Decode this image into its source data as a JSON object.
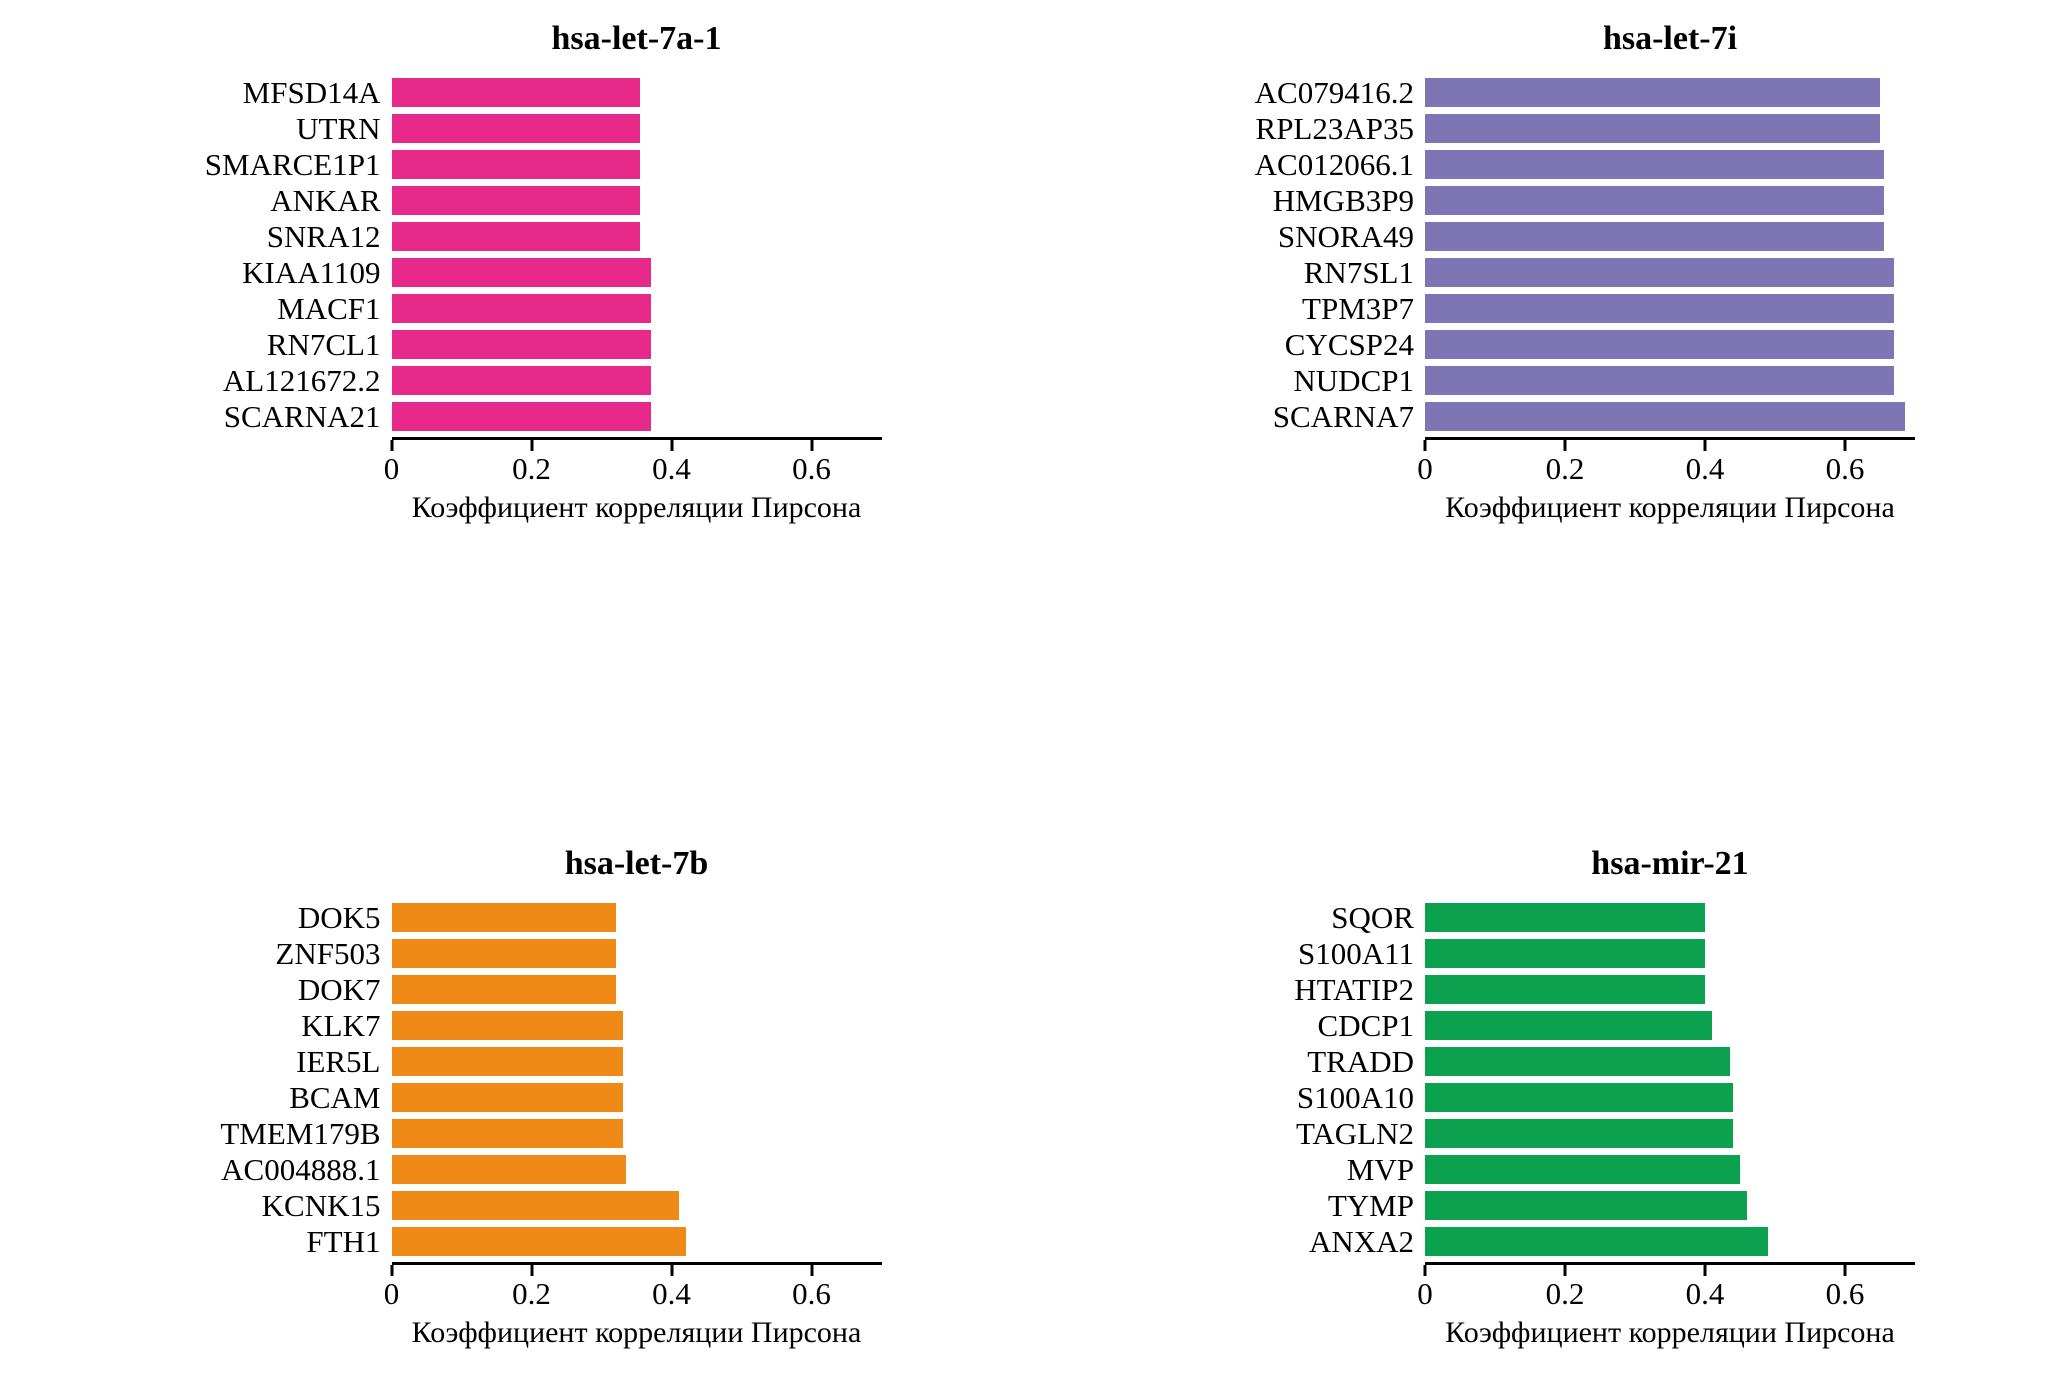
{
  "figure": {
    "background": "#ffffff",
    "layout": "2x2-grid"
  },
  "chart_data": [
    {
      "type": "bar",
      "orientation": "horizontal",
      "title": "hsa-let-7a-1",
      "color": "#E7298A",
      "xlabel": "Коэффициент корреляции Пирсона",
      "xlim": [
        0,
        0.7
      ],
      "xticks": [
        0,
        0.2,
        0.4,
        0.6
      ],
      "xtick_labels": [
        "0",
        "0.2",
        "0.4",
        "0.6"
      ],
      "grid": false,
      "legend": "none",
      "categories": [
        "MFSD14A",
        "UTRN",
        "SMARCE1P1",
        "ANKAR",
        "SNRA12",
        "KIAA1109",
        "MACF1",
        "RN7CL1",
        "AL121672.2",
        "SCARNA21"
      ],
      "values": [
        0.355,
        0.355,
        0.355,
        0.355,
        0.355,
        0.37,
        0.37,
        0.37,
        0.37,
        0.37
      ]
    },
    {
      "type": "bar",
      "orientation": "horizontal",
      "title": "hsa-let-7i",
      "color": "#7E76B4",
      "xlabel": "Коэффициент корреляции Пирсона",
      "xlim": [
        0,
        0.7
      ],
      "xticks": [
        0,
        0.2,
        0.4,
        0.6
      ],
      "xtick_labels": [
        "0",
        "0.2",
        "0.4",
        "0.6"
      ],
      "grid": false,
      "legend": "none",
      "categories": [
        "AC079416.2",
        "RPL23AP35",
        "AC012066.1",
        "HMGB3P9",
        "SNORA49",
        "RN7SL1",
        "TPM3P7",
        "CYCSP24",
        "NUDCP1",
        "SCARNA7"
      ],
      "values": [
        0.65,
        0.65,
        0.655,
        0.655,
        0.655,
        0.67,
        0.67,
        0.67,
        0.67,
        0.685
      ]
    },
    {
      "type": "bar",
      "orientation": "horizontal",
      "title": "hsa-let-7b",
      "color": "#EF8A17",
      "xlabel": "Коэффициент корреляции Пирсона",
      "xlim": [
        0,
        0.7
      ],
      "xticks": [
        0,
        0.2,
        0.4,
        0.6
      ],
      "xtick_labels": [
        "0",
        "0.2",
        "0.4",
        "0.6"
      ],
      "grid": false,
      "legend": "none",
      "categories": [
        "DOK5",
        "ZNF503",
        "DOK7",
        "KLK7",
        "IER5L",
        "BCAM",
        "TMEM179B",
        "AC004888.1",
        "KCNK15",
        "FTH1"
      ],
      "values": [
        0.32,
        0.32,
        0.32,
        0.33,
        0.33,
        0.33,
        0.33,
        0.335,
        0.41,
        0.42
      ]
    },
    {
      "type": "bar",
      "orientation": "horizontal",
      "title": "hsa-mir-21",
      "color": "#0BA14E",
      "xlabel": "Коэффициент корреляции Пирсона",
      "xlim": [
        0,
        0.7
      ],
      "xticks": [
        0,
        0.2,
        0.4,
        0.6
      ],
      "xtick_labels": [
        "0",
        "0.2",
        "0.4",
        "0.6"
      ],
      "grid": false,
      "legend": "none",
      "categories": [
        "SQOR",
        "S100A11",
        "HTATIP2",
        "CDCP1",
        "TRADD",
        "S100A10",
        "TAGLN2",
        "MVP",
        "TYMP",
        "ANXA2"
      ],
      "values": [
        0.4,
        0.4,
        0.4,
        0.41,
        0.435,
        0.44,
        0.44,
        0.45,
        0.46,
        0.49
      ]
    }
  ]
}
